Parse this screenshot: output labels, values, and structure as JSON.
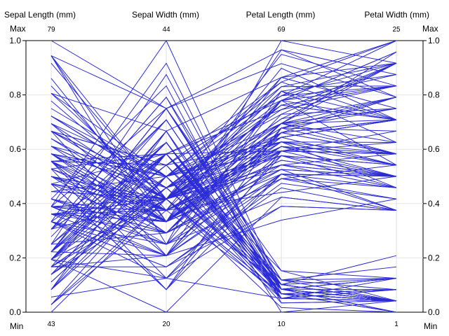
{
  "chart_data": {
    "type": "parallel-coordinates",
    "axes": [
      {
        "name": "Sepal Length (mm)",
        "min": 43,
        "max": 79
      },
      {
        "name": "Sepal Width (mm)",
        "min": 20,
        "max": 44
      },
      {
        "name": "Petal Length (mm)",
        "min": 10,
        "max": 69
      },
      {
        "name": "Petal Width (mm)",
        "min": 1,
        "max": 25
      }
    ],
    "scale_ticks": [
      "0.0",
      "0.2",
      "0.4",
      "0.6",
      "0.8",
      "1.0"
    ],
    "max_label": "Max",
    "min_label": "Min",
    "line_color": "#2b2bd6",
    "grid": true,
    "records": [
      [
        51,
        35,
        14,
        2
      ],
      [
        49,
        30,
        14,
        2
      ],
      [
        47,
        32,
        13,
        2
      ],
      [
        46,
        31,
        15,
        2
      ],
      [
        50,
        36,
        14,
        2
      ],
      [
        54,
        39,
        17,
        4
      ],
      [
        46,
        34,
        14,
        3
      ],
      [
        50,
        34,
        15,
        2
      ],
      [
        44,
        29,
        14,
        2
      ],
      [
        49,
        31,
        15,
        1
      ],
      [
        54,
        37,
        15,
        2
      ],
      [
        48,
        34,
        16,
        2
      ],
      [
        48,
        30,
        14,
        1
      ],
      [
        43,
        30,
        11,
        1
      ],
      [
        58,
        40,
        12,
        2
      ],
      [
        57,
        44,
        15,
        4
      ],
      [
        54,
        39,
        13,
        4
      ],
      [
        51,
        35,
        14,
        3
      ],
      [
        57,
        38,
        17,
        3
      ],
      [
        51,
        38,
        15,
        3
      ],
      [
        54,
        34,
        17,
        2
      ],
      [
        51,
        37,
        15,
        4
      ],
      [
        46,
        36,
        10,
        2
      ],
      [
        51,
        33,
        17,
        5
      ],
      [
        48,
        34,
        19,
        2
      ],
      [
        50,
        30,
        16,
        2
      ],
      [
        50,
        34,
        16,
        4
      ],
      [
        52,
        35,
        15,
        2
      ],
      [
        52,
        34,
        14,
        2
      ],
      [
        47,
        32,
        16,
        2
      ],
      [
        48,
        31,
        16,
        2
      ],
      [
        54,
        34,
        15,
        4
      ],
      [
        52,
        41,
        15,
        1
      ],
      [
        55,
        42,
        14,
        2
      ],
      [
        49,
        31,
        15,
        2
      ],
      [
        50,
        32,
        12,
        2
      ],
      [
        55,
        35,
        13,
        2
      ],
      [
        49,
        36,
        14,
        1
      ],
      [
        44,
        30,
        13,
        2
      ],
      [
        51,
        34,
        15,
        2
      ],
      [
        50,
        35,
        13,
        3
      ],
      [
        45,
        23,
        13,
        3
      ],
      [
        44,
        32,
        13,
        2
      ],
      [
        50,
        35,
        16,
        6
      ],
      [
        51,
        38,
        19,
        4
      ],
      [
        48,
        30,
        14,
        3
      ],
      [
        51,
        38,
        16,
        2
      ],
      [
        46,
        32,
        14,
        2
      ],
      [
        53,
        37,
        15,
        2
      ],
      [
        50,
        33,
        14,
        2
      ],
      [
        70,
        32,
        47,
        14
      ],
      [
        64,
        32,
        45,
        15
      ],
      [
        69,
        31,
        49,
        15
      ],
      [
        55,
        23,
        40,
        13
      ],
      [
        65,
        28,
        46,
        15
      ],
      [
        57,
        28,
        45,
        13
      ],
      [
        63,
        33,
        47,
        16
      ],
      [
        49,
        24,
        33,
        10
      ],
      [
        66,
        29,
        46,
        13
      ],
      [
        52,
        27,
        39,
        14
      ],
      [
        50,
        20,
        35,
        10
      ],
      [
        59,
        30,
        42,
        15
      ],
      [
        60,
        22,
        40,
        10
      ],
      [
        61,
        29,
        47,
        14
      ],
      [
        56,
        29,
        36,
        13
      ],
      [
        67,
        31,
        44,
        14
      ],
      [
        56,
        30,
        45,
        15
      ],
      [
        58,
        27,
        41,
        10
      ],
      [
        62,
        22,
        45,
        15
      ],
      [
        56,
        25,
        39,
        11
      ],
      [
        59,
        32,
        48,
        18
      ],
      [
        61,
        28,
        40,
        13
      ],
      [
        63,
        25,
        49,
        15
      ],
      [
        61,
        28,
        47,
        12
      ],
      [
        64,
        29,
        43,
        13
      ],
      [
        66,
        30,
        44,
        14
      ],
      [
        68,
        28,
        48,
        14
      ],
      [
        67,
        30,
        50,
        17
      ],
      [
        60,
        29,
        45,
        15
      ],
      [
        57,
        26,
        35,
        10
      ],
      [
        55,
        24,
        38,
        11
      ],
      [
        55,
        24,
        37,
        10
      ],
      [
        58,
        27,
        39,
        12
      ],
      [
        60,
        27,
        51,
        16
      ],
      [
        54,
        30,
        45,
        15
      ],
      [
        60,
        34,
        45,
        16
      ],
      [
        67,
        31,
        47,
        15
      ],
      [
        63,
        23,
        44,
        13
      ],
      [
        56,
        30,
        41,
        13
      ],
      [
        55,
        25,
        40,
        13
      ],
      [
        55,
        26,
        44,
        12
      ],
      [
        61,
        30,
        46,
        14
      ],
      [
        58,
        26,
        40,
        12
      ],
      [
        50,
        23,
        33,
        10
      ],
      [
        56,
        27,
        42,
        13
      ],
      [
        57,
        30,
        42,
        12
      ],
      [
        57,
        29,
        42,
        13
      ],
      [
        62,
        29,
        43,
        13
      ],
      [
        51,
        25,
        30,
        11
      ],
      [
        57,
        28,
        41,
        13
      ],
      [
        63,
        33,
        60,
        25
      ],
      [
        58,
        27,
        51,
        19
      ],
      [
        71,
        30,
        59,
        21
      ],
      [
        63,
        29,
        56,
        18
      ],
      [
        65,
        30,
        58,
        22
      ],
      [
        76,
        30,
        66,
        21
      ],
      [
        49,
        25,
        45,
        17
      ],
      [
        73,
        29,
        63,
        18
      ],
      [
        67,
        25,
        58,
        18
      ],
      [
        72,
        36,
        61,
        25
      ],
      [
        65,
        32,
        51,
        20
      ],
      [
        64,
        27,
        53,
        19
      ],
      [
        68,
        30,
        55,
        21
      ],
      [
        57,
        25,
        50,
        20
      ],
      [
        58,
        28,
        51,
        24
      ],
      [
        64,
        32,
        53,
        23
      ],
      [
        65,
        30,
        55,
        18
      ],
      [
        77,
        38,
        67,
        22
      ],
      [
        77,
        26,
        69,
        23
      ],
      [
        60,
        22,
        50,
        15
      ],
      [
        69,
        32,
        57,
        23
      ],
      [
        56,
        28,
        49,
        20
      ],
      [
        77,
        28,
        67,
        20
      ],
      [
        63,
        27,
        49,
        18
      ],
      [
        67,
        33,
        57,
        21
      ],
      [
        72,
        32,
        60,
        18
      ],
      [
        62,
        28,
        48,
        18
      ],
      [
        61,
        30,
        49,
        18
      ],
      [
        64,
        28,
        56,
        21
      ],
      [
        72,
        30,
        58,
        16
      ],
      [
        74,
        28,
        61,
        19
      ],
      [
        79,
        38,
        64,
        20
      ],
      [
        64,
        28,
        56,
        22
      ],
      [
        63,
        28,
        51,
        15
      ],
      [
        61,
        26,
        56,
        14
      ],
      [
        77,
        30,
        61,
        23
      ],
      [
        63,
        34,
        56,
        24
      ],
      [
        64,
        31,
        55,
        18
      ],
      [
        60,
        30,
        48,
        18
      ],
      [
        69,
        31,
        54,
        21
      ],
      [
        67,
        31,
        56,
        24
      ],
      [
        69,
        31,
        51,
        23
      ],
      [
        58,
        27,
        51,
        19
      ],
      [
        68,
        32,
        59,
        23
      ],
      [
        67,
        33,
        57,
        25
      ],
      [
        67,
        30,
        52,
        23
      ],
      [
        63,
        25,
        50,
        19
      ],
      [
        65,
        30,
        52,
        20
      ],
      [
        62,
        34,
        54,
        23
      ],
      [
        59,
        30,
        51,
        18
      ]
    ]
  }
}
